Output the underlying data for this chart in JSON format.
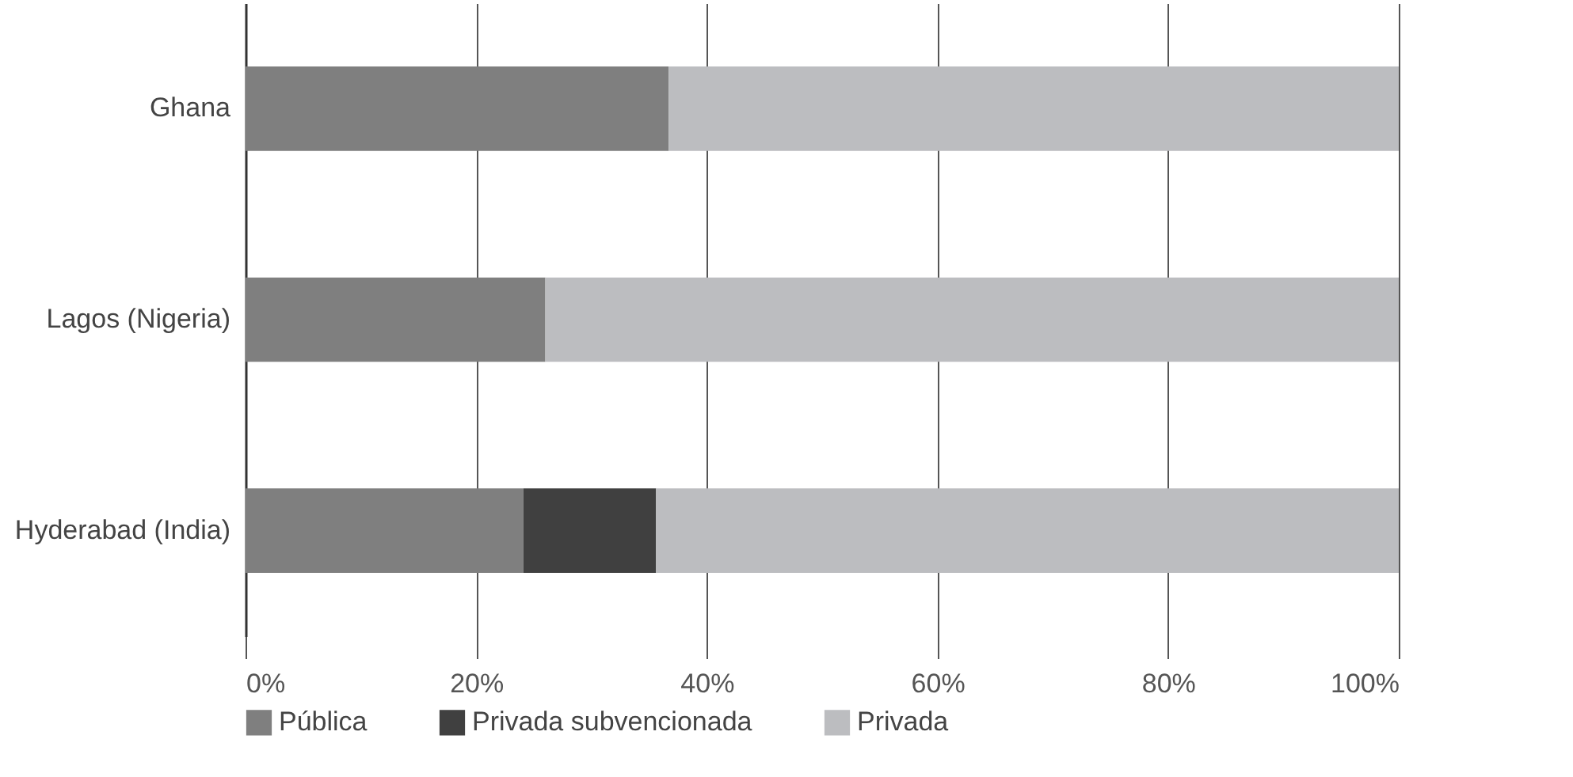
{
  "chart_data": {
    "type": "bar",
    "orientation": "horizontal",
    "stacked": true,
    "categories": [
      "Ghana",
      "Lagos (Nigeria)",
      "Hyderabad (India)"
    ],
    "series": [
      {
        "name": "Pública",
        "color": "#7f7f7f",
        "values": [
          36.7,
          26.0,
          24.1
        ]
      },
      {
        "name": "Privada subvencionada",
        "color": "#404040",
        "values": [
          null,
          null,
          11.5
        ]
      },
      {
        "name": "Privada",
        "color": "#bcbdc0",
        "values": [
          63.3,
          74.0,
          64.4
        ]
      }
    ],
    "xlim": [
      0,
      100
    ],
    "xticks": [
      {
        "value": 0,
        "label": "0%"
      },
      {
        "value": 20,
        "label": "20%"
      },
      {
        "value": 40,
        "label": "40%"
      },
      {
        "value": 60,
        "label": "60%"
      },
      {
        "value": 80,
        "label": "80%"
      },
      {
        "value": 100,
        "label": "100%"
      }
    ],
    "grid": "x",
    "legend": "bottom"
  }
}
